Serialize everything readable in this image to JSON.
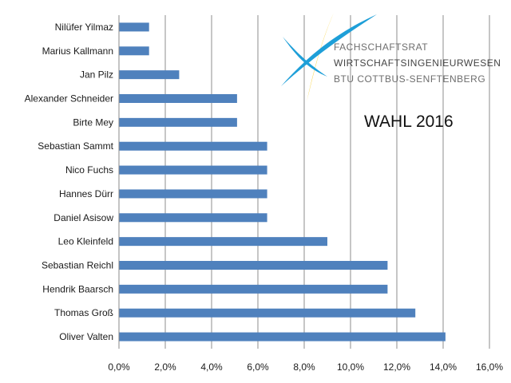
{
  "chart_data": {
    "type": "bar",
    "orientation": "horizontal",
    "title": "",
    "annotation": "WAHL 2016",
    "xlabel": "",
    "ylabel": "",
    "categories": [
      "Nilüfer Yilmaz",
      "Marius Kallmann",
      "Jan Pilz",
      "Alexander Schneider",
      "Birte Mey",
      "Sebastian Sammt",
      "Nico Fuchs",
      "Hannes Dürr",
      "Daniel Asisow",
      "Leo Kleinfeld",
      "Sebastian Reichl",
      "Hendrik Baarsch",
      "Thomas Groß",
      "Oliver Valten"
    ],
    "values": [
      1.3,
      1.3,
      2.6,
      5.1,
      5.1,
      6.4,
      6.4,
      6.4,
      6.4,
      9.0,
      11.6,
      11.6,
      12.8,
      14.1
    ],
    "xlim": [
      0,
      16
    ],
    "xticks": [
      "0,0%",
      "2,0%",
      "4,0%",
      "6,0%",
      "8,0%",
      "10,0%",
      "12,0%",
      "14,0%",
      "16,0%"
    ],
    "grid": true,
    "bar_color": "#4f81bd"
  },
  "logo": {
    "line1": "FACHSCHAFTSRAT",
    "line2": "WIRTSCHAFTSINGENIEURWESEN",
    "line3": "BTU COTTBUS-SENFTENBERG",
    "colors": {
      "yellow": "#f5c400",
      "blue": "#1e9fd8",
      "text": "#6e6e6e"
    }
  }
}
